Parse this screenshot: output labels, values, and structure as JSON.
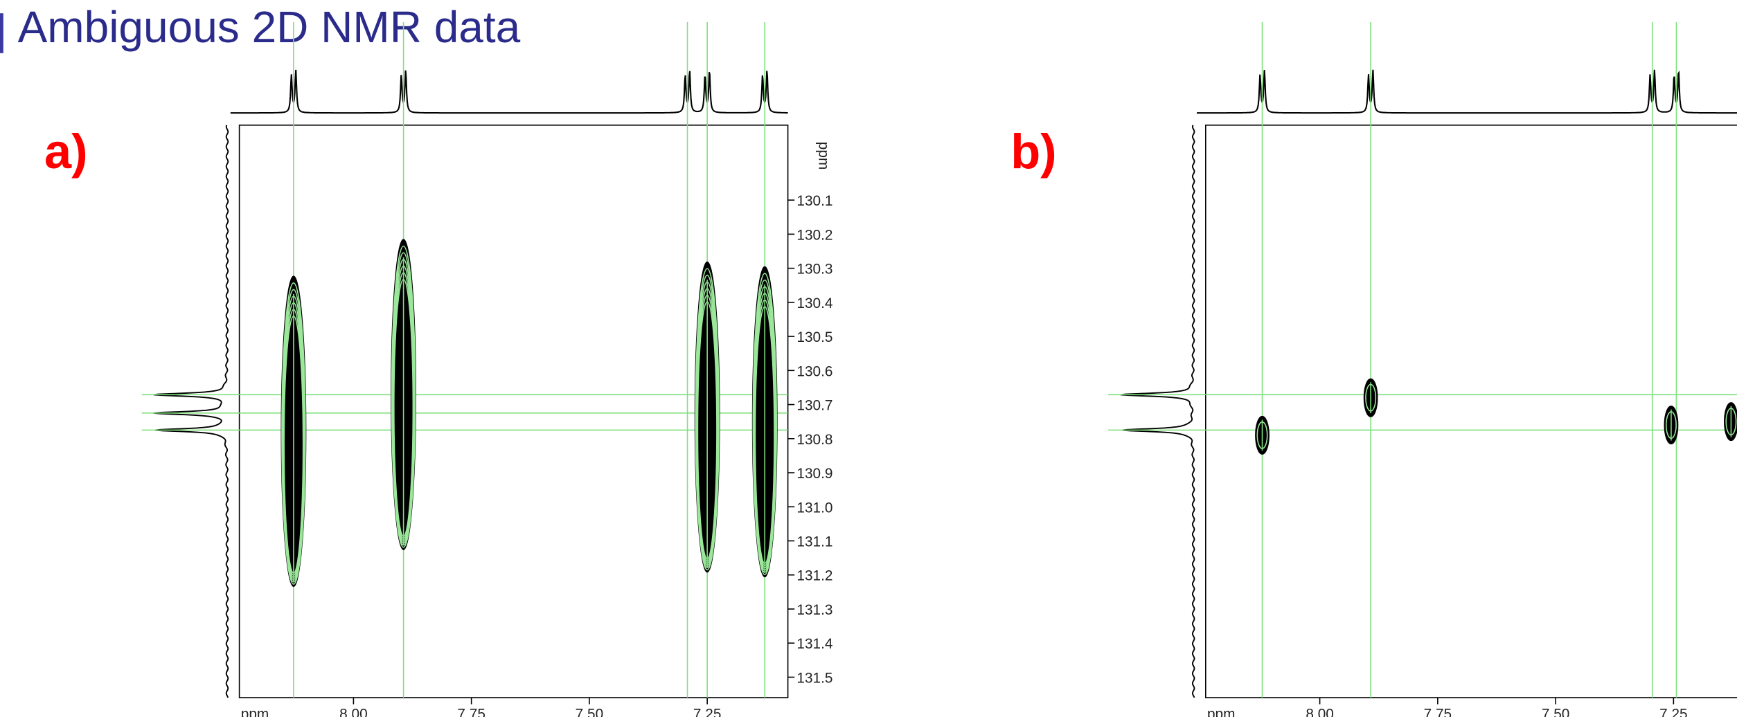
{
  "title": "Ambiguous 2D NMR data",
  "chart_data": [
    {
      "type": "contour",
      "label": "a)",
      "xlabel": "ppm",
      "ylabel": "ppm",
      "xlim": [
        8.242,
        7.079
      ],
      "ylim": [
        129.88,
        131.56
      ],
      "xticks": [
        {
          "value": 8.0,
          "label": "8.00"
        },
        {
          "value": 7.75,
          "label": "7.75"
        },
        {
          "value": 7.5,
          "label": "7.50"
        },
        {
          "value": 7.25,
          "label": "7.25"
        }
      ],
      "yticks": [
        130.1,
        130.2,
        130.3,
        130.4,
        130.5,
        130.6,
        130.7,
        130.8,
        130.9,
        {
          "value": 131,
          "label": "131.0"
        },
        131.1,
        131.2,
        131.3,
        131.4,
        131.5
      ],
      "x": [
        8.127,
        7.894,
        7.25,
        7.128
      ],
      "values": [
        130.798,
        130.69,
        130.756,
        130.77
      ],
      "color": "#000000",
      "guide_color": "#7ee07e",
      "guide_x": [
        8.127,
        7.894,
        7.292,
        7.25,
        7.128
      ],
      "guide_y": [
        130.671,
        130.725,
        130.775
      ]
    },
    {
      "type": "contour",
      "label": "b)",
      "xlabel": "ppm",
      "ylabel": "ppm",
      "xlim": [
        8.242,
        7.079
      ],
      "ylim": [
        129.88,
        131.56
      ],
      "xticks": [
        {
          "value": 8.0,
          "label": "8.00"
        },
        {
          "value": 7.75,
          "label": "7.75"
        },
        {
          "value": 7.5,
          "label": "7.50"
        },
        {
          "value": 7.25,
          "label": "7.25"
        }
      ],
      "yticks": [
        130.1,
        130.2,
        130.3,
        130.4,
        130.5,
        130.6,
        130.7,
        130.8,
        130.9,
        {
          "value": 131,
          "label": "131.0"
        },
        131.1,
        131.2,
        131.3,
        131.4,
        131.5
      ],
      "x": [
        8.122,
        7.892,
        7.255,
        7.128
      ],
      "values": [
        130.79,
        130.68,
        130.76,
        130.75
      ],
      "color": "#000000",
      "guide_color": "#7ee07e",
      "guide_x": [
        8.122,
        7.892,
        7.295,
        7.244
      ],
      "guide_y": [
        130.671,
        130.775
      ]
    }
  ]
}
